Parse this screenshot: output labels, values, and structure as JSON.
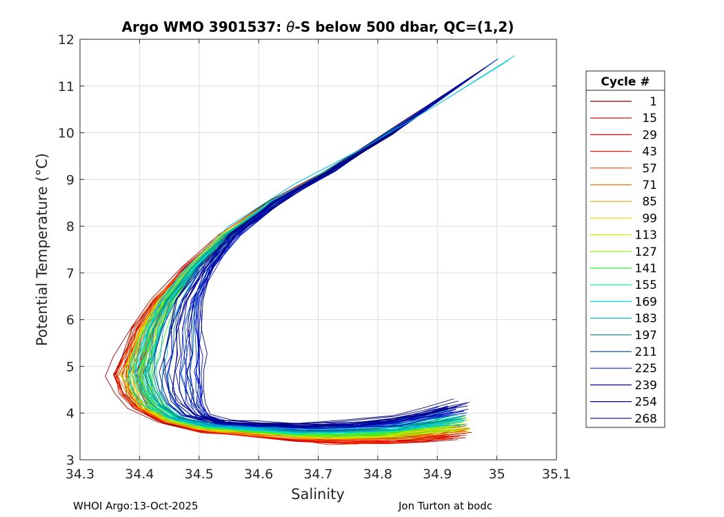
{
  "chart_data": {
    "type": "line",
    "title_prefix": "Argo WMO 3901537: ",
    "title_theta": "θ",
    "title_suffix": "-S below 500 dbar,  QC=(1,2)",
    "xlabel": "Salinity",
    "ylabel": "Potential Temperature (°C)",
    "xlim": [
      34.3,
      35.1
    ],
    "ylim": [
      3,
      12
    ],
    "x_ticks": [
      34.3,
      34.4,
      34.5,
      34.6,
      34.7,
      34.8,
      34.9,
      35,
      35.1
    ],
    "x_tick_labels": [
      "34.3",
      "34.4",
      "34.5",
      "34.6",
      "34.7",
      "34.8",
      "34.9",
      "35",
      "35.1"
    ],
    "y_ticks": [
      3,
      4,
      5,
      6,
      7,
      8,
      9,
      10,
      11,
      12
    ],
    "y_tick_labels": [
      "3",
      "4",
      "5",
      "6",
      "7",
      "8",
      "9",
      "10",
      "11",
      "12"
    ],
    "grid": true,
    "legend_title": "Cycle #",
    "legend_position": "right-outside",
    "legend": [
      {
        "label": "1",
        "color": "#7f0000"
      },
      {
        "label": "15",
        "color": "#b00000"
      },
      {
        "label": "29",
        "color": "#e00000"
      },
      {
        "label": "43",
        "color": "#ff1a00"
      },
      {
        "label": "57",
        "color": "#ff4d00"
      },
      {
        "label": "71",
        "color": "#e07000"
      },
      {
        "label": "85",
        "color": "#e0a000"
      },
      {
        "label": "99",
        "color": "#f0e000"
      },
      {
        "label": "113",
        "color": "#c8f000"
      },
      {
        "label": "127",
        "color": "#80f000"
      },
      {
        "label": "141",
        "color": "#30f030"
      },
      {
        "label": "155",
        "color": "#00e890"
      },
      {
        "label": "169",
        "color": "#00e0d0"
      },
      {
        "label": "183",
        "color": "#00b8e8"
      },
      {
        "label": "197",
        "color": "#008080"
      },
      {
        "label": "211",
        "color": "#0050c0"
      },
      {
        "label": "225",
        "color": "#0020e0"
      },
      {
        "label": "239",
        "color": "#0000c0"
      },
      {
        "label": "254",
        "color": "#000090"
      },
      {
        "label": "268",
        "color": "#000070"
      }
    ],
    "profile_count": 268,
    "envelope": {
      "description_free": true,
      "salinity_min_near_5C": 34.35,
      "salinity_max_near_3_5C": 35.0,
      "max_temp": 11.65,
      "max_temp_salinity": 35.03,
      "min_temp": 3.05
    },
    "series_template": {
      "x": [
        34.82,
        34.72,
        34.62,
        34.54,
        34.48,
        34.43,
        34.4,
        34.38,
        34.37,
        34.38,
        34.4,
        34.44,
        34.5,
        34.58,
        34.66,
        34.74,
        34.82,
        34.88,
        34.93
      ],
      "y": [
        10.0,
        9.2,
        8.5,
        7.8,
        7.1,
        6.4,
        5.8,
        5.2,
        4.8,
        4.4,
        4.1,
        3.8,
        3.6,
        3.5,
        3.4,
        3.35,
        3.35,
        3.4,
        3.45
      ]
    }
  },
  "footer": {
    "left": "WHOI Argo:13-Oct-2025",
    "right": "Jon Turton at bodc"
  },
  "colors": {
    "axis": "#262626",
    "grid": "#dcdcdc",
    "background": "#ffffff"
  }
}
